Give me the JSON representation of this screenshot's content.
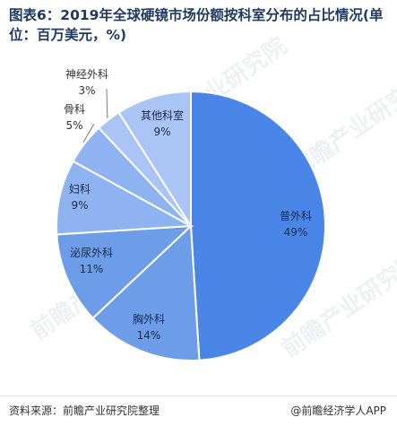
{
  "title": "图表6：2019年全球硬镜市场份额按科室分布的占比情况(单位：百万美元，%)",
  "footer": {
    "source": "资料来源：前瞻产业研究院整理",
    "brand": "@前瞻经济学人APP"
  },
  "watermark": "前瞻产业研究院",
  "colors": {
    "main": "#4a86e8",
    "slice_light": "#a9c4f5",
    "slice_mid": "#8fb3f0",
    "slice_dark": "#6d9ce9",
    "stroke": "#ffffff",
    "title": "#1f3a5f"
  },
  "chart_data": {
    "type": "pie",
    "title": "图表6：2019年全球硬镜市场份额按科室分布的占比情况(单位：百万美元，%)",
    "slices": [
      {
        "label": "普外科",
        "value": 49,
        "display": "49%"
      },
      {
        "label": "胸外科",
        "value": 14,
        "display": "14%"
      },
      {
        "label": "泌尿外科",
        "value": 11,
        "display": "11%"
      },
      {
        "label": "妇科",
        "value": 9,
        "display": "9%"
      },
      {
        "label": "骨科",
        "value": 5,
        "display": "5%"
      },
      {
        "label": "神经外科",
        "value": 3,
        "display": "3%"
      },
      {
        "label": "其他科室",
        "value": 9,
        "display": "9%"
      }
    ],
    "start": "12 o'clock",
    "direction": "clockwise"
  }
}
